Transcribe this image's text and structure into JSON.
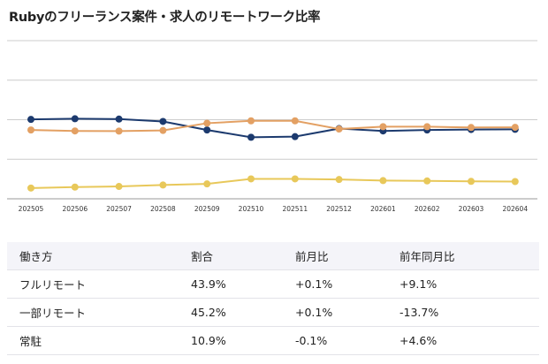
{
  "title": "Rubyのフリーランス案件・求人のリモートワーク比率",
  "chart_data": {
    "type": "line",
    "title": "Rubyのフリーランス案件・求人のリモートワーク比率",
    "categories": [
      "202505",
      "202506",
      "202507",
      "202508",
      "202509",
      "202510",
      "202511",
      "202512",
      "202601",
      "202602",
      "202603",
      "202604"
    ],
    "ylim": [
      0,
      100
    ],
    "grid": true,
    "series": [
      {
        "color": "#1c3a6e",
        "values": [
          50.2,
          50.6,
          50.4,
          48.9,
          43.5,
          38.9,
          39.3,
          44.4,
          42.9,
          43.5,
          43.8,
          43.9
        ]
      },
      {
        "color": "#e3a063",
        "values": [
          43.5,
          42.9,
          42.8,
          43.2,
          47.8,
          49.3,
          49.3,
          44.1,
          45.6,
          45.6,
          45.1,
          45.2
        ]
      },
      {
        "color": "#e8c85a",
        "values": [
          6.8,
          7.4,
          7.8,
          8.7,
          9.4,
          12.6,
          12.6,
          12.2,
          11.5,
          11.3,
          11.0,
          10.9
        ]
      }
    ]
  },
  "table": {
    "headers": [
      "働き方",
      "割合",
      "前月比",
      "前年同月比"
    ],
    "rows": [
      [
        "フルリモート",
        "43.9%",
        "+0.1%",
        "+9.1%"
      ],
      [
        "一部リモート",
        "45.2%",
        "+0.1%",
        "-13.7%"
      ],
      [
        "常駐",
        "10.9%",
        "-0.1%",
        "+4.6%"
      ]
    ]
  }
}
